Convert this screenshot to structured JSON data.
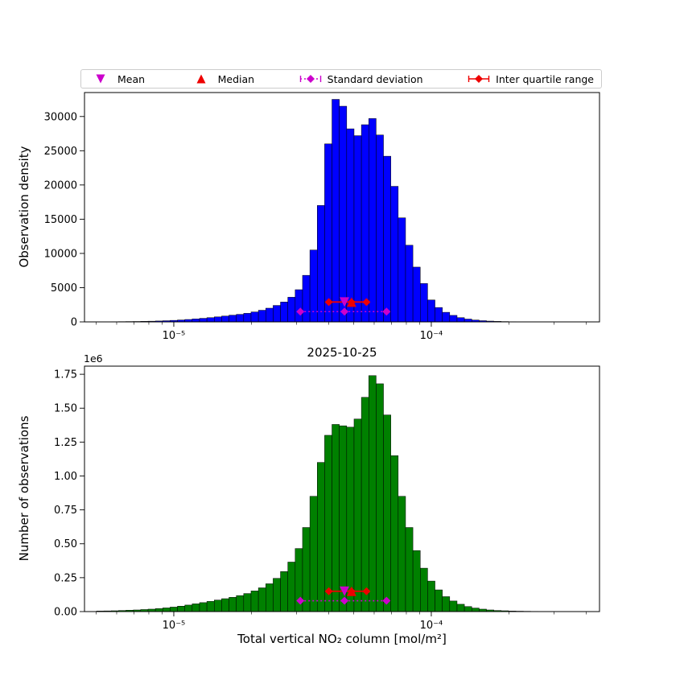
{
  "figure": {
    "title": "2025-10-25",
    "xlabel": "Total vertical NO₂ column [mol/m²]",
    "background_color": "#ffffff"
  },
  "legend": {
    "items": [
      {
        "label": "Mean",
        "marker": "triangle-down",
        "color": "#cc00cc",
        "line": "none"
      },
      {
        "label": "Median",
        "marker": "triangle-up",
        "color": "#ee0000",
        "line": "none"
      },
      {
        "label": "Standard deviation",
        "marker": "diamond",
        "color": "#cc00cc",
        "line": "dotted"
      },
      {
        "label": "Inter quartile range",
        "marker": "diamond",
        "color": "#ee0000",
        "line": "solid"
      }
    ]
  },
  "chart_data": [
    {
      "type": "bar",
      "name": "observation-density-histogram",
      "ylabel": "Observation density",
      "bar_color": "#0000ff",
      "bar_edge_color": "#000000",
      "x_scale": "log",
      "xlim": [
        4.5e-06,
        0.00045
      ],
      "ylim": [
        0,
        33500
      ],
      "yticks": [
        0,
        5000,
        10000,
        15000,
        20000,
        25000,
        30000
      ],
      "ytick_labels": [
        "0",
        "5000",
        "10000",
        "15000",
        "20000",
        "25000",
        "30000"
      ],
      "xticks": [
        1e-05,
        0.0001
      ],
      "xtick_labels": [
        "10⁻⁵",
        "10⁻⁴"
      ],
      "bins": {
        "log10_start": -5.3,
        "bins_per_decade": 35
      },
      "values": [
        20,
        25,
        30,
        40,
        50,
        60,
        80,
        100,
        130,
        170,
        220,
        280,
        350,
        430,
        520,
        620,
        730,
        850,
        980,
        1100,
        1250,
        1450,
        1700,
        2000,
        2400,
        2900,
        3600,
        4700,
        6800,
        10500,
        17000,
        26000,
        32500,
        31500,
        28200,
        27200,
        28800,
        29700,
        27300,
        24200,
        19800,
        15200,
        11200,
        8000,
        5600,
        3200,
        2100,
        1400,
        950,
        620,
        410,
        270,
        175,
        115,
        75,
        48,
        30,
        19,
        12,
        8
      ],
      "markers": {
        "mean": 4.6e-05,
        "median": 4.9e-05,
        "std_range": [
          3.1e-05,
          6.7e-05
        ],
        "iqr_range": [
          4e-05,
          5.6e-05
        ],
        "marker_y": 2900,
        "std_y": 1500
      }
    },
    {
      "type": "bar",
      "name": "number-of-observations-histogram",
      "ylabel": "Number of observations",
      "offset_text": "1e6",
      "y_unit_multiplier": 1000000.0,
      "bar_color": "#008000",
      "bar_edge_color": "#000000",
      "x_scale": "log",
      "xlim": [
        4.5e-06,
        0.00045
      ],
      "ylim": [
        0,
        1.81
      ],
      "yticks": [
        0,
        0.25,
        0.5,
        0.75,
        1.0,
        1.25,
        1.5,
        1.75
      ],
      "ytick_labels": [
        "0.00",
        "0.25",
        "0.50",
        "0.75",
        "1.00",
        "1.25",
        "1.50",
        "1.75"
      ],
      "xticks": [
        1e-05,
        0.0001
      ],
      "xtick_labels": [
        "10⁻⁵",
        "10⁻⁴"
      ],
      "bins": {
        "log10_start": -5.3,
        "bins_per_decade": 35
      },
      "values": [
        0.004,
        0.005,
        0.006,
        0.008,
        0.01,
        0.012,
        0.015,
        0.018,
        0.022,
        0.027,
        0.033,
        0.04,
        0.048,
        0.057,
        0.066,
        0.075,
        0.085,
        0.095,
        0.105,
        0.118,
        0.133,
        0.152,
        0.175,
        0.205,
        0.245,
        0.295,
        0.365,
        0.465,
        0.62,
        0.85,
        1.1,
        1.3,
        1.38,
        1.37,
        1.36,
        1.42,
        1.58,
        1.74,
        1.68,
        1.45,
        1.15,
        0.85,
        0.62,
        0.45,
        0.32,
        0.225,
        0.16,
        0.11,
        0.078,
        0.054,
        0.037,
        0.026,
        0.018,
        0.012,
        0.008,
        0.006,
        0.004,
        0.003,
        0.0022,
        0.0016
      ],
      "markers": {
        "mean": 4.6e-05,
        "median": 4.9e-05,
        "std_range": [
          3.1e-05,
          6.7e-05
        ],
        "iqr_range": [
          4e-05,
          5.6e-05
        ],
        "marker_y": 0.15,
        "std_y": 0.08
      }
    }
  ]
}
